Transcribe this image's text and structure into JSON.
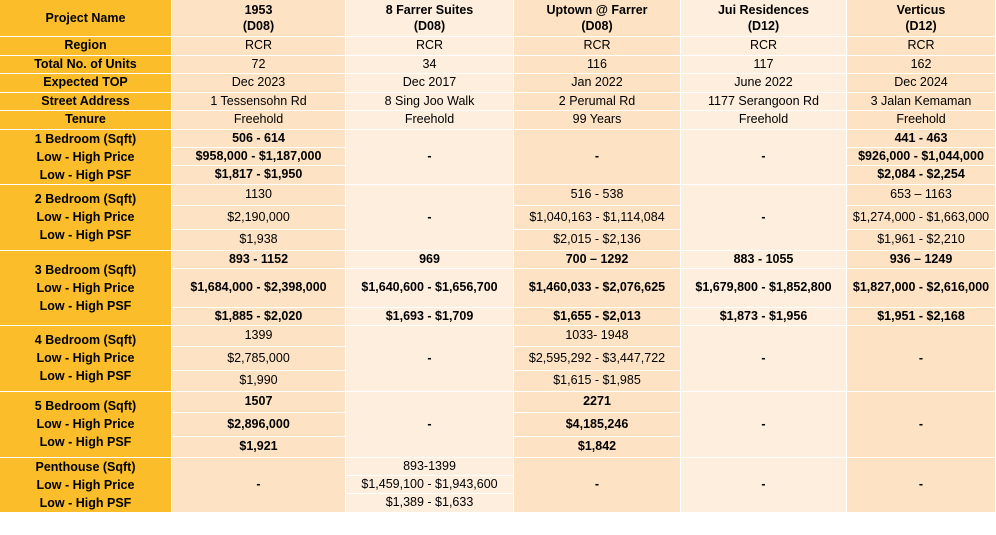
{
  "header": {
    "label": "Project Name",
    "projects": [
      {
        "name": "1953",
        "district": "(D08)"
      },
      {
        "name": "8 Farrer Suites",
        "district": "(D08)"
      },
      {
        "name": "Uptown @ Farrer",
        "district": "(D08)"
      },
      {
        "name": "Jui Residences",
        "district": "(D12)"
      },
      {
        "name": "Verticus",
        "district": "(D12)"
      }
    ]
  },
  "info_rows": [
    {
      "label": "Region",
      "values": [
        "RCR",
        "RCR",
        "RCR",
        "RCR",
        "RCR"
      ]
    },
    {
      "label": "Total No. of Units",
      "values": [
        "72",
        "34",
        "116",
        "117",
        "162"
      ]
    },
    {
      "label": "Expected TOP",
      "values": [
        "Dec 2023",
        "Dec 2017",
        "Jan 2022",
        "June 2022",
        "Dec 2024"
      ]
    },
    {
      "label": "Street Address",
      "values": [
        "1 Tessensohn Rd",
        "8 Sing Joo Walk",
        "2 Perumal Rd",
        "1177 Serangoon Rd",
        "3 Jalan Kemaman"
      ]
    },
    {
      "label": "Tenure",
      "values": [
        "Freehold",
        "Freehold",
        "99 Years",
        "Freehold",
        "Freehold"
      ]
    }
  ],
  "groups": [
    {
      "labels": [
        "1 Bedroom (Sqft)",
        "Low - High Price",
        "Low - High PSF"
      ],
      "cells": [
        [
          "506 - 614",
          "$958,000 - $1,187,000",
          "$1,817 - $1,950"
        ],
        "-",
        "-",
        "-",
        [
          "441 - 463",
          "$926,000 - $1,044,000",
          "$2,084 - $2,254"
        ]
      ]
    },
    {
      "labels": [
        "2 Bedroom (Sqft)",
        "Low - High Price",
        "Low - High PSF"
      ],
      "cells": [
        [
          "1130",
          "$2,190,000",
          "$1,938"
        ],
        "-",
        [
          "516 - 538",
          "$1,040,163 - $1,114,084",
          "$2,015 - $2,136"
        ],
        "-",
        [
          "653 – 1163",
          "$1,274,000 - $1,663,000",
          "$1,961 - $2,210"
        ]
      ]
    },
    {
      "labels": [
        "3 Bedroom (Sqft)",
        "Low - High Price",
        "Low - High PSF"
      ],
      "cells": [
        [
          "893 - 1152",
          "$1,684,000 - $2,398,000",
          "$1,885 - $2,020"
        ],
        [
          "969",
          "$1,640,600 - $1,656,700",
          "$1,693 - $1,709"
        ],
        [
          "700 – 1292",
          "$1,460,033 - $2,076,625",
          "$1,655 - $2,013"
        ],
        [
          "883 - 1055",
          "$1,679,800 - $1,852,800",
          "$1,873 - $1,956"
        ],
        [
          "936 – 1249",
          "$1,827,000 - $2,616,000",
          "$1,951 - $2,168"
        ]
      ]
    },
    {
      "labels": [
        "4 Bedroom (Sqft)",
        "Low - High Price",
        "Low - High PSF"
      ],
      "cells": [
        [
          "1399",
          "$2,785,000",
          "$1,990"
        ],
        "-",
        [
          "1033- 1948",
          "$2,595,292 - $3,447,722",
          "$1,615 - $1,985"
        ],
        "-",
        "-"
      ]
    },
    {
      "labels": [
        "5 Bedroom (Sqft)",
        "Low - High Price",
        "Low - High PSF"
      ],
      "cells": [
        [
          "1507",
          "$2,896,000",
          "$1,921"
        ],
        "-",
        [
          "2271",
          "$4,185,246",
          "$1,842"
        ],
        "-",
        "-"
      ]
    },
    {
      "labels": [
        "Penthouse (Sqft)",
        "Low - High Price",
        "Low - High PSF"
      ],
      "cells": [
        "-",
        [
          "893-1399",
          "$1,459,100 - $1,943,600",
          "$1,389 - $1,633"
        ],
        "-",
        "-",
        "-"
      ]
    }
  ]
}
